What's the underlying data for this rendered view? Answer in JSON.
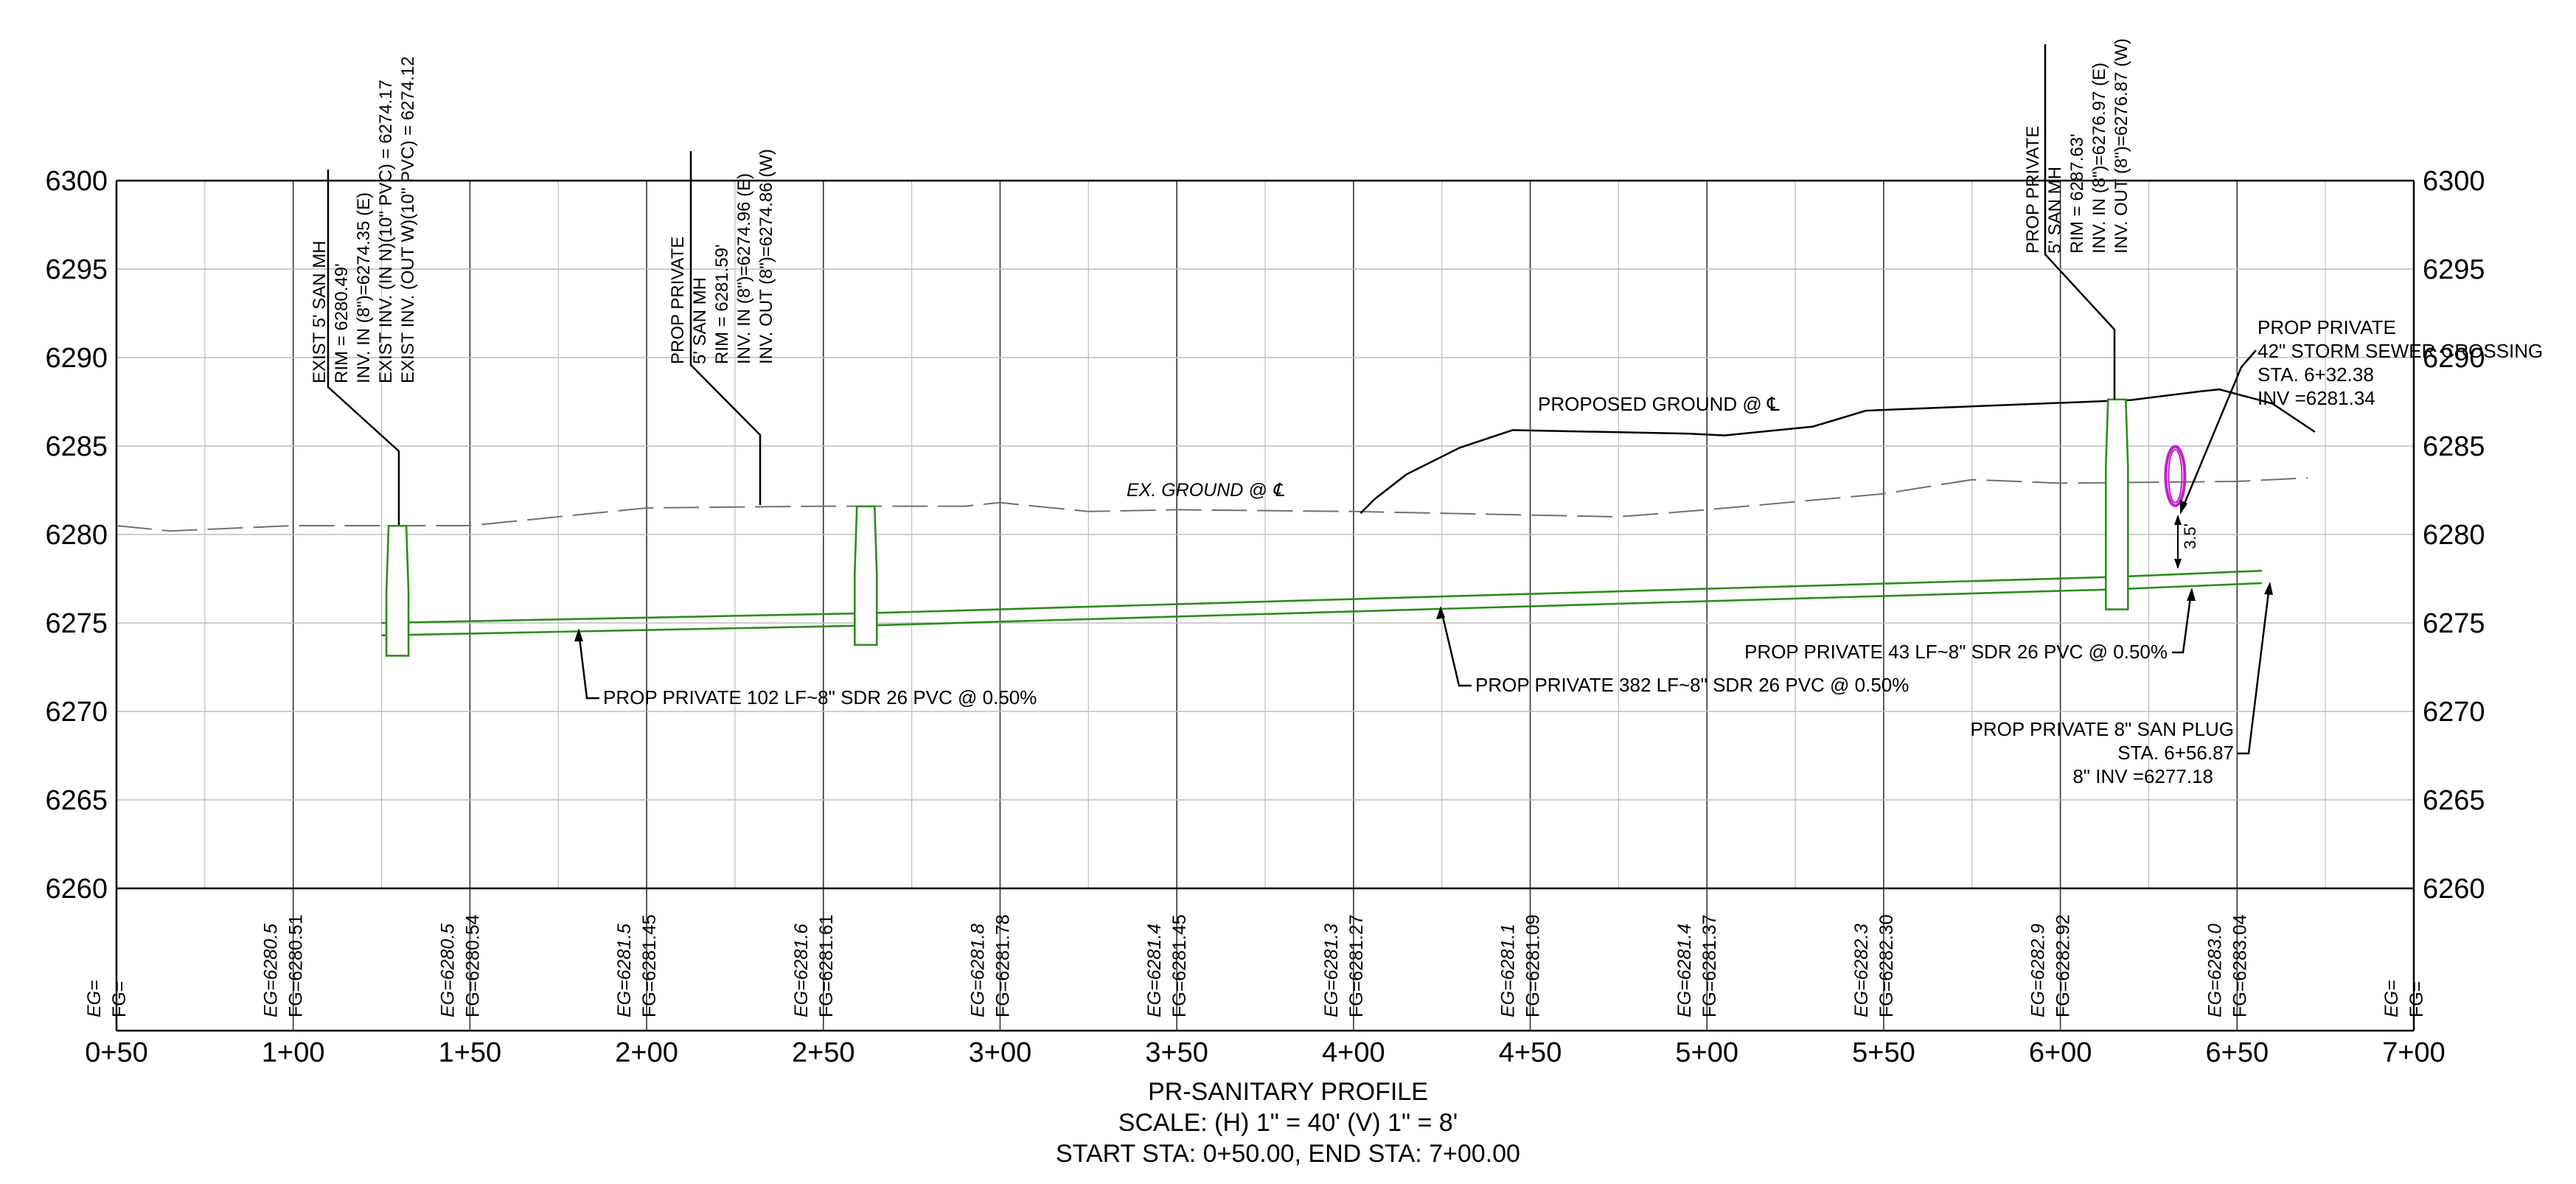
{
  "profile": {
    "vertical_axis": {
      "min": 6260,
      "max": 6300,
      "step": 5,
      "labels": [
        "6300",
        "6295",
        "6290",
        "6285",
        "6280",
        "6275",
        "6270",
        "6265",
        "6260"
      ]
    },
    "horizontal_axis": {
      "min_station": 50,
      "max_station": 700,
      "step": 50,
      "labels": [
        "0+50",
        "1+00",
        "1+50",
        "2+00",
        "2+50",
        "3+00",
        "3+50",
        "4+00",
        "4+50",
        "5+00",
        "5+50",
        "6+00",
        "6+50",
        "7+00"
      ]
    },
    "grade_labels": [
      {
        "station": 50,
        "eg": "EG=",
        "fg": "FG="
      },
      {
        "station": 100,
        "eg": "EG=6280.5",
        "fg": "FG=6280.51"
      },
      {
        "station": 150,
        "eg": "EG=6280.5",
        "fg": "FG=6280.54"
      },
      {
        "station": 200,
        "eg": "EG=6281.5",
        "fg": "FG=6281.45"
      },
      {
        "station": 250,
        "eg": "EG=6281.6",
        "fg": "FG=6281.61"
      },
      {
        "station": 300,
        "eg": "EG=6281.8",
        "fg": "FG=6281.78"
      },
      {
        "station": 350,
        "eg": "EG=6281.4",
        "fg": "FG=6281.45"
      },
      {
        "station": 400,
        "eg": "EG=6281.3",
        "fg": "FG=6281.27"
      },
      {
        "station": 450,
        "eg": "EG=6281.1",
        "fg": "FG=6281.09"
      },
      {
        "station": 500,
        "eg": "EG=6281.4",
        "fg": "FG=6281.37"
      },
      {
        "station": 550,
        "eg": "EG=6282.3",
        "fg": "FG=6282.30"
      },
      {
        "station": 600,
        "eg": "EG=6282.9",
        "fg": "FG=6282.92"
      },
      {
        "station": 650,
        "eg": "EG=6283.0",
        "fg": "FG=6283.04"
      },
      {
        "station": 700,
        "eg": "EG=",
        "fg": "FG="
      }
    ],
    "existing_ground_label": "EX. GROUND @ ℄",
    "proposed_ground_label": "PROPOSED GROUND @ ℄",
    "manholes": [
      {
        "id": "mh-1",
        "lines": [
          "EXIST 5' SAN MH",
          "RIM = 6280.49'",
          "INV. IN (8\")=6274.35 (E)",
          "EXIST INV. (IN N)(10\" PVC) = 6274.17",
          "EXIST INV. (OUT W)(10\" PVC) = 6274.12"
        ]
      },
      {
        "id": "mh-2",
        "lines": [
          "PROP PRIVATE",
          "5' SAN MH",
          "RIM = 6281.59'",
          "INV. IN (8\")=6274.96 (E)",
          "INV. OUT (8\")=6274.86 (W)"
        ]
      },
      {
        "id": "mh-3",
        "lines": [
          "PROP PRIVATE",
          "5' SAN MH",
          "RIM = 6287.63'",
          "INV. IN (8\")=6276.97 (E)",
          "INV. OUT (8\")=6276.87 (W)"
        ]
      }
    ],
    "pipe_labels": [
      "PROP PRIVATE 102 LF~8\" SDR 26 PVC @ 0.50%",
      "PROP PRIVATE 382 LF~8\" SDR 26 PVC @ 0.50%",
      "PROP PRIVATE 43 LF~8\" SDR 26 PVC @ 0.50%"
    ],
    "storm_crossing": [
      "PROP PRIVATE",
      "42\" STORM SEWER CROSSING",
      "STA. 6+32.38",
      "INV =6281.34"
    ],
    "plug": [
      "PROP PRIVATE 8\" SAN PLUG",
      "STA. 6+56.87",
      "8\" INV =6277.18"
    ],
    "clearance_label": "3.5'",
    "colors": {
      "pipe": "#2e8b1e",
      "storm": "#c020c8",
      "grid": "#bdbdbd",
      "ink": "#000000",
      "ground_dash": "#707070"
    }
  },
  "title_block": {
    "title": "PR-SANITARY PROFILE",
    "scale": "SCALE: (H) 1\" = 40' (V) 1\" = 8'",
    "stations": "START STA: 0+50.00, END STA: 7+00.00"
  }
}
